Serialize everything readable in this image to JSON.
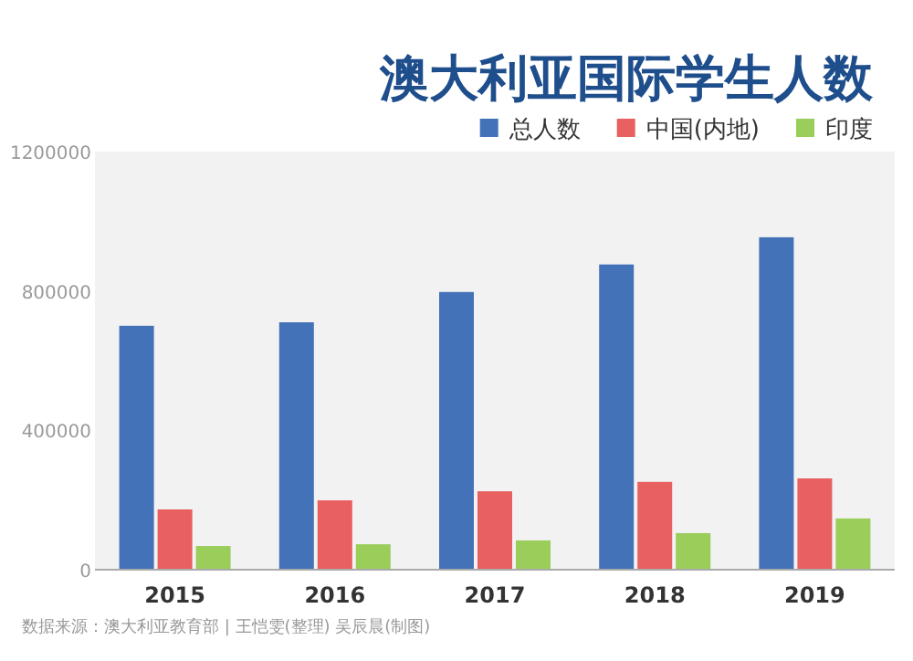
{
  "chart_data": {
    "type": "bar",
    "title": "澳大利亚国际学生人数",
    "categories": [
      "2015",
      "2016",
      "2017",
      "2018",
      "2019"
    ],
    "series": [
      {
        "name": "总人数",
        "color": "#4472b8",
        "values": [
          700000,
          710000,
          797000,
          876000,
          954000
        ]
      },
      {
        "name": "中国(内地)",
        "color": "#e8605f",
        "values": [
          173000,
          199000,
          225000,
          252000,
          262000
        ]
      },
      {
        "name": "印度",
        "color": "#9acd5a",
        "values": [
          68000,
          73000,
          84000,
          105000,
          147000
        ]
      }
    ],
    "ylim": [
      0,
      1200000
    ],
    "yticks": [
      0,
      400000,
      800000,
      1200000
    ],
    "legend": "top right",
    "annotations": [
      "数据来源：澳大利亚教育部 | 王恺雯(整理) 吴辰晨(制图)"
    ]
  }
}
